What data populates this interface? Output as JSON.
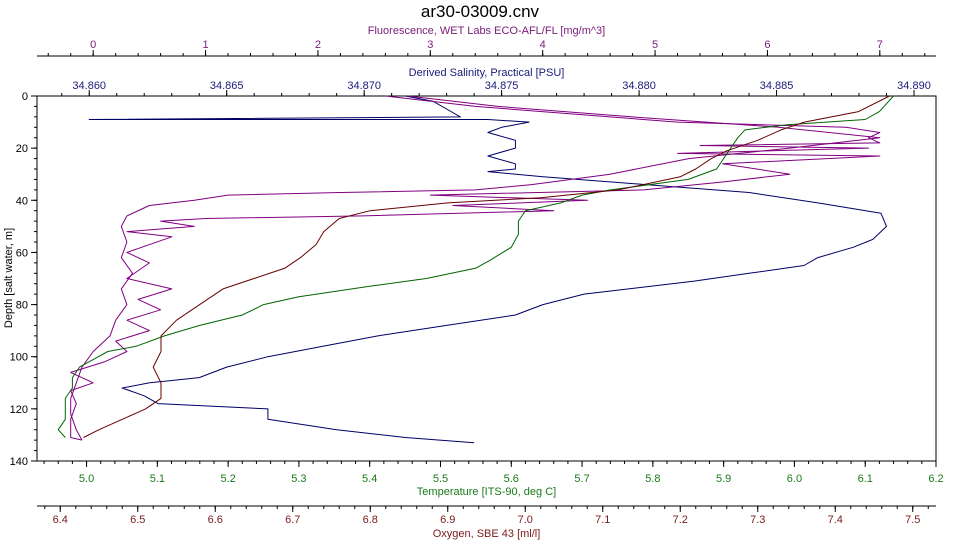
{
  "chart_data": {
    "type": "line",
    "title": "ar30-03009.cnv",
    "y_axis": {
      "label": "Depth [salt water, m]",
      "range": [
        0,
        140
      ],
      "ticks": [
        0,
        20,
        40,
        60,
        80,
        100,
        120,
        140
      ],
      "inverted": true
    },
    "x_axes": [
      {
        "id": "fluorescence",
        "label": "Fluorescence, WET Labs ECO-AFL/FL [mg/m^3]",
        "position": "top-outer",
        "color": "#7a1a7a",
        "range": [
          -0.5,
          7.5
        ],
        "ticks": [
          0,
          1,
          2,
          3,
          4,
          5,
          6,
          7
        ],
        "tick_labels": [
          "0",
          "1",
          "2",
          "3",
          "4",
          "5",
          "6",
          "7"
        ]
      },
      {
        "id": "salinity",
        "label": "Derived Salinity, Practical [PSU]",
        "position": "top-inner",
        "color": "#1a1a7a",
        "range": [
          34.8581,
          34.8908
        ],
        "ticks": [
          34.86,
          34.865,
          34.87,
          34.875,
          34.88,
          34.885,
          34.89
        ],
        "tick_labels": [
          "34.860",
          "34.865",
          "34.870",
          "34.875",
          "34.880",
          "34.885",
          "34.890"
        ]
      },
      {
        "id": "temperature",
        "label": "Temperature [ITS-90, deg C]",
        "position": "bottom-inner",
        "color": "#1a7a1a",
        "range": [
          4.93,
          6.2
        ],
        "ticks": [
          5.0,
          5.1,
          5.2,
          5.3,
          5.4,
          5.5,
          5.6,
          5.7,
          5.8,
          5.9,
          6.0,
          6.1,
          6.2
        ],
        "tick_labels": [
          "5.0",
          "5.1",
          "5.2",
          "5.3",
          "5.4",
          "5.5",
          "5.6",
          "5.7",
          "5.8",
          "5.9",
          "6.0",
          "6.1",
          "6.2"
        ]
      },
      {
        "id": "oxygen",
        "label": "Oxygen, SBE 43 [ml/l]",
        "position": "bottom-outer",
        "color": "#7a1a1a",
        "range": [
          6.37,
          7.53
        ],
        "ticks": [
          6.4,
          6.5,
          6.6,
          6.7,
          6.8,
          6.9,
          7.0,
          7.1,
          7.2,
          7.3,
          7.4,
          7.5
        ],
        "tick_labels": [
          "6.4",
          "6.5",
          "6.6",
          "6.7",
          "6.8",
          "6.9",
          "7.0",
          "7.1",
          "7.2",
          "7.3",
          "7.4",
          "7.5"
        ]
      }
    ],
    "series": [
      {
        "axis": "salinity",
        "color": "#000066",
        "points": [
          [
            34.8715,
            0
          ],
          [
            34.8725,
            2
          ],
          [
            34.873,
            5
          ],
          [
            34.8735,
            8
          ],
          [
            34.86,
            9
          ],
          [
            34.8745,
            9
          ],
          [
            34.876,
            10
          ],
          [
            34.875,
            12
          ],
          [
            34.8745,
            14
          ],
          [
            34.8755,
            17
          ],
          [
            34.8755,
            20
          ],
          [
            34.8745,
            23
          ],
          [
            34.8755,
            26
          ],
          [
            34.8755,
            28
          ],
          [
            34.8745,
            29
          ],
          [
            34.8765,
            31
          ],
          [
            34.879,
            33
          ],
          [
            34.8815,
            35
          ],
          [
            34.884,
            37
          ],
          [
            34.8865,
            41
          ],
          [
            34.8888,
            45
          ],
          [
            34.889,
            50
          ],
          [
            34.8885,
            55
          ],
          [
            34.8878,
            58
          ],
          [
            34.8865,
            62
          ],
          [
            34.886,
            65
          ],
          [
            34.884,
            68
          ],
          [
            34.882,
            71
          ],
          [
            34.878,
            76
          ],
          [
            34.8765,
            80
          ],
          [
            34.8755,
            84
          ],
          [
            34.873,
            88
          ],
          [
            34.8705,
            92
          ],
          [
            34.8685,
            96
          ],
          [
            34.8665,
            100
          ],
          [
            34.865,
            104
          ],
          [
            34.864,
            108
          ],
          [
            34.8622,
            110
          ],
          [
            34.8612,
            112
          ],
          [
            34.862,
            115
          ],
          [
            34.8625,
            118
          ],
          [
            34.8665,
            120
          ],
          [
            34.8665,
            124
          ],
          [
            34.869,
            128
          ],
          [
            34.8715,
            131
          ],
          [
            34.874,
            133
          ]
        ]
      },
      {
        "axis": "fluorescence",
        "color": "#800080",
        "points": [
          [
            2.6,
            0
          ],
          [
            3.4,
            4
          ],
          [
            4.6,
            8
          ],
          [
            5.2,
            10
          ],
          [
            6.7,
            12
          ],
          [
            7.0,
            14
          ],
          [
            6.9,
            16
          ],
          [
            7.0,
            18
          ],
          [
            5.4,
            19
          ],
          [
            6.9,
            20
          ],
          [
            5.2,
            22
          ],
          [
            7.0,
            23
          ],
          [
            5.6,
            26
          ],
          [
            6.2,
            30
          ],
          [
            5.6,
            33
          ],
          [
            4.9,
            36
          ],
          [
            3.0,
            38
          ],
          [
            4.4,
            40
          ],
          [
            3.2,
            42
          ],
          [
            4.1,
            44
          ],
          [
            2.4,
            46
          ],
          [
            1.0,
            47
          ],
          [
            0.6,
            48
          ],
          [
            0.9,
            50
          ],
          [
            0.3,
            52
          ],
          [
            0.7,
            54
          ],
          [
            0.3,
            60
          ],
          [
            0.5,
            64
          ],
          [
            0.3,
            70
          ],
          [
            0.7,
            74
          ],
          [
            0.4,
            78
          ],
          [
            0.6,
            82
          ],
          [
            0.3,
            86
          ],
          [
            0.5,
            90
          ],
          [
            0.2,
            94
          ],
          [
            0.3,
            98
          ],
          [
            0.1,
            102
          ],
          [
            -0.2,
            106
          ],
          [
            0.0,
            110
          ],
          [
            -0.2,
            113
          ],
          [
            -0.15,
            118
          ],
          [
            -0.2,
            124
          ],
          [
            -0.2,
            128
          ],
          [
            -0.2,
            131
          ],
          [
            -0.1,
            132
          ]
        ]
      },
      {
        "axis": "fluorescence",
        "color": "#800080",
        "points": [
          [
            2.8,
            0
          ],
          [
            3.6,
            4
          ],
          [
            4.8,
            8
          ],
          [
            6.1,
            12
          ],
          [
            7.0,
            16
          ],
          [
            6.2,
            20
          ],
          [
            5.3,
            24
          ],
          [
            4.6,
            30
          ],
          [
            3.9,
            34
          ],
          [
            3.4,
            36
          ],
          [
            2.2,
            37
          ],
          [
            1.2,
            38
          ],
          [
            0.9,
            40
          ],
          [
            0.5,
            42
          ],
          [
            0.3,
            46
          ],
          [
            0.25,
            50
          ],
          [
            0.3,
            56
          ],
          [
            0.25,
            62
          ],
          [
            0.35,
            68
          ],
          [
            0.25,
            74
          ],
          [
            0.3,
            80
          ],
          [
            0.2,
            86
          ],
          [
            0.15,
            92
          ],
          [
            0.0,
            98
          ],
          [
            -0.1,
            104
          ],
          [
            -0.15,
            110
          ],
          [
            -0.2,
            116
          ],
          [
            -0.2,
            122
          ],
          [
            -0.15,
            128
          ],
          [
            -0.1,
            132
          ]
        ]
      },
      {
        "axis": "temperature",
        "color": "#006600",
        "points": [
          [
            6.14,
            0
          ],
          [
            6.12,
            6
          ],
          [
            6.1,
            9
          ],
          [
            5.99,
            11
          ],
          [
            5.93,
            13
          ],
          [
            5.92,
            16
          ],
          [
            5.91,
            20
          ],
          [
            5.9,
            24
          ],
          [
            5.89,
            28
          ],
          [
            5.85,
            32
          ],
          [
            5.74,
            36
          ],
          [
            5.7,
            38
          ],
          [
            5.67,
            41
          ],
          [
            5.62,
            44
          ],
          [
            5.61,
            48
          ],
          [
            5.61,
            53
          ],
          [
            5.6,
            58
          ],
          [
            5.57,
            63
          ],
          [
            5.55,
            66
          ],
          [
            5.48,
            70
          ],
          [
            5.4,
            73
          ],
          [
            5.3,
            77
          ],
          [
            5.25,
            80
          ],
          [
            5.22,
            84
          ],
          [
            5.16,
            88
          ],
          [
            5.11,
            92
          ],
          [
            5.07,
            96
          ],
          [
            5.03,
            98
          ],
          [
            5.01,
            101
          ],
          [
            4.99,
            104
          ],
          [
            4.98,
            108
          ],
          [
            4.98,
            112
          ],
          [
            4.97,
            116
          ],
          [
            4.97,
            120
          ],
          [
            4.97,
            124
          ],
          [
            4.96,
            128
          ],
          [
            4.97,
            131
          ]
        ]
      },
      {
        "axis": "oxygen",
        "color": "#660000",
        "points": [
          [
            7.47,
            0
          ],
          [
            7.43,
            6
          ],
          [
            7.36,
            10
          ],
          [
            7.33,
            13
          ],
          [
            7.3,
            17
          ],
          [
            7.26,
            21
          ],
          [
            7.24,
            24
          ],
          [
            7.22,
            28
          ],
          [
            7.2,
            31
          ],
          [
            7.12,
            36
          ],
          [
            7.02,
            39
          ],
          [
            6.9,
            41
          ],
          [
            6.8,
            44
          ],
          [
            6.76,
            47
          ],
          [
            6.74,
            52
          ],
          [
            6.73,
            57
          ],
          [
            6.71,
            62
          ],
          [
            6.69,
            66
          ],
          [
            6.65,
            70
          ],
          [
            6.61,
            74
          ],
          [
            6.58,
            80
          ],
          [
            6.55,
            86
          ],
          [
            6.53,
            92
          ],
          [
            6.53,
            98
          ],
          [
            6.52,
            104
          ],
          [
            6.53,
            110
          ],
          [
            6.53,
            116
          ],
          [
            6.51,
            120
          ],
          [
            6.48,
            124
          ],
          [
            6.45,
            128
          ],
          [
            6.43,
            131
          ]
        ]
      }
    ]
  }
}
